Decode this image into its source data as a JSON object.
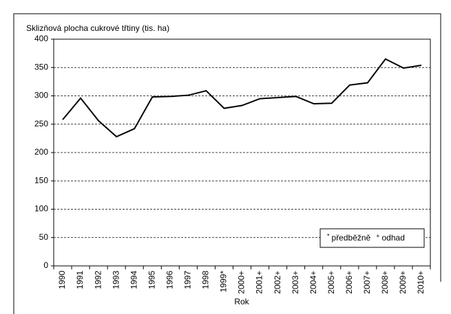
{
  "chart_data": {
    "type": "line",
    "title": "Sklizňová plocha cukrové třtiny (tis. ha)",
    "x_label": "Rok",
    "categories": [
      "1990",
      "1991",
      "1992",
      "1993",
      "1994",
      "1995",
      "1996",
      "1997",
      "1998",
      "1999*",
      "2000+",
      "2001+",
      "2002+",
      "2003+",
      "2004+",
      "2005+",
      "2006+",
      "2007+",
      "2008+",
      "2009+",
      "2010+"
    ],
    "series": [
      {
        "name": "Sklizňová plocha",
        "color": "#000000",
        "values": [
          258,
          296,
          256,
          228,
          242,
          298,
          299,
          301,
          309,
          278,
          283,
          295,
          297,
          299,
          286,
          287,
          319,
          323,
          365,
          349,
          354
        ]
      }
    ],
    "ylim": [
      0,
      400
    ],
    "yticks": [
      0,
      50,
      100,
      150,
      200,
      250,
      300,
      350,
      400
    ],
    "grid": true,
    "legend_notes": [
      {
        "symbol": "*",
        "label": "předběžně"
      },
      {
        "symbol": "+",
        "label": "odhad"
      }
    ]
  }
}
